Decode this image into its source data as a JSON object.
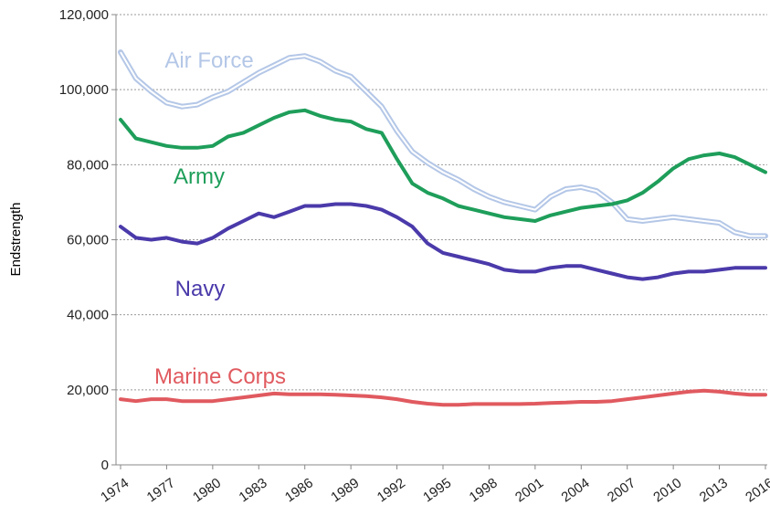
{
  "chart_data": {
    "type": "line",
    "y_label": "Endstrength",
    "x": [
      1974,
      1975,
      1976,
      1977,
      1978,
      1979,
      1980,
      1981,
      1982,
      1983,
      1984,
      1985,
      1986,
      1987,
      1988,
      1989,
      1990,
      1991,
      1992,
      1993,
      1994,
      1995,
      1996,
      1997,
      1998,
      1999,
      2000,
      2001,
      2002,
      2003,
      2004,
      2005,
      2006,
      2007,
      2008,
      2009,
      2010,
      2011,
      2012,
      2013,
      2014,
      2015,
      2016
    ],
    "xlim": [
      1974,
      2016
    ],
    "xticks": [
      1974,
      1977,
      1980,
      1983,
      1986,
      1989,
      1992,
      1995,
      1998,
      2001,
      2004,
      2007,
      2010,
      2013,
      2016
    ],
    "ylim": [
      0,
      120000
    ],
    "yticks": [
      {
        "value": 0,
        "label": "0"
      },
      {
        "value": 20000,
        "label": "20,000"
      },
      {
        "value": 40000,
        "label": "40,000"
      },
      {
        "value": 60000,
        "label": "60,000"
      },
      {
        "value": 80000,
        "label": "80,000"
      },
      {
        "value": 100000,
        "label": "100,000"
      },
      {
        "value": 120000,
        "label": "120,000"
      }
    ],
    "grid": true,
    "series": [
      {
        "name": "Air Force",
        "color": "#b4c7e7",
        "values": [
          110000,
          103000,
          99500,
          96500,
          95500,
          96000,
          98000,
          99500,
          102000,
          104500,
          106500,
          108500,
          109000,
          107500,
          105000,
          103500,
          99500,
          95500,
          89000,
          83500,
          80500,
          78000,
          76000,
          73500,
          71500,
          70000,
          69000,
          68000,
          71500,
          73500,
          74000,
          73000,
          70000,
          65500,
          65000,
          65500,
          66000,
          65500,
          65000,
          64500,
          62000,
          61000,
          61000
        ]
      },
      {
        "name": "Army",
        "color": "#1e9e5a",
        "values": [
          92000,
          87000,
          86000,
          85000,
          84500,
          84500,
          85000,
          87500,
          88500,
          90500,
          92500,
          94000,
          94500,
          93000,
          92000,
          91500,
          89500,
          88500,
          81500,
          75000,
          72500,
          71000,
          69000,
          68000,
          67000,
          66000,
          65500,
          65000,
          66500,
          67500,
          68500,
          69000,
          69500,
          70500,
          72500,
          75500,
          79000,
          81500,
          82500,
          83000,
          82000,
          80000,
          78000
        ]
      },
      {
        "name": "Navy",
        "color": "#4a3aaa",
        "values": [
          63500,
          60500,
          60000,
          60500,
          59500,
          59000,
          60500,
          63000,
          65000,
          67000,
          66000,
          67500,
          69000,
          69000,
          69500,
          69500,
          69000,
          68000,
          66000,
          63500,
          59000,
          56500,
          55500,
          54500,
          53500,
          52000,
          51500,
          51500,
          52500,
          53000,
          53000,
          52000,
          51000,
          50000,
          49500,
          50000,
          51000,
          51500,
          51500,
          52000,
          52500,
          52500,
          52500
        ]
      },
      {
        "name": "Marine Corps",
        "color": "#e05a5f",
        "values": [
          17500,
          17000,
          17500,
          17500,
          17000,
          17000,
          17000,
          17500,
          18000,
          18500,
          19000,
          18800,
          18800,
          18800,
          18700,
          18500,
          18300,
          18000,
          17500,
          16800,
          16300,
          16000,
          16000,
          16200,
          16200,
          16200,
          16200,
          16300,
          16500,
          16600,
          16800,
          16800,
          17000,
          17500,
          18000,
          18500,
          19000,
          19500,
          19800,
          19500,
          19000,
          18700,
          18700
        ]
      }
    ]
  }
}
